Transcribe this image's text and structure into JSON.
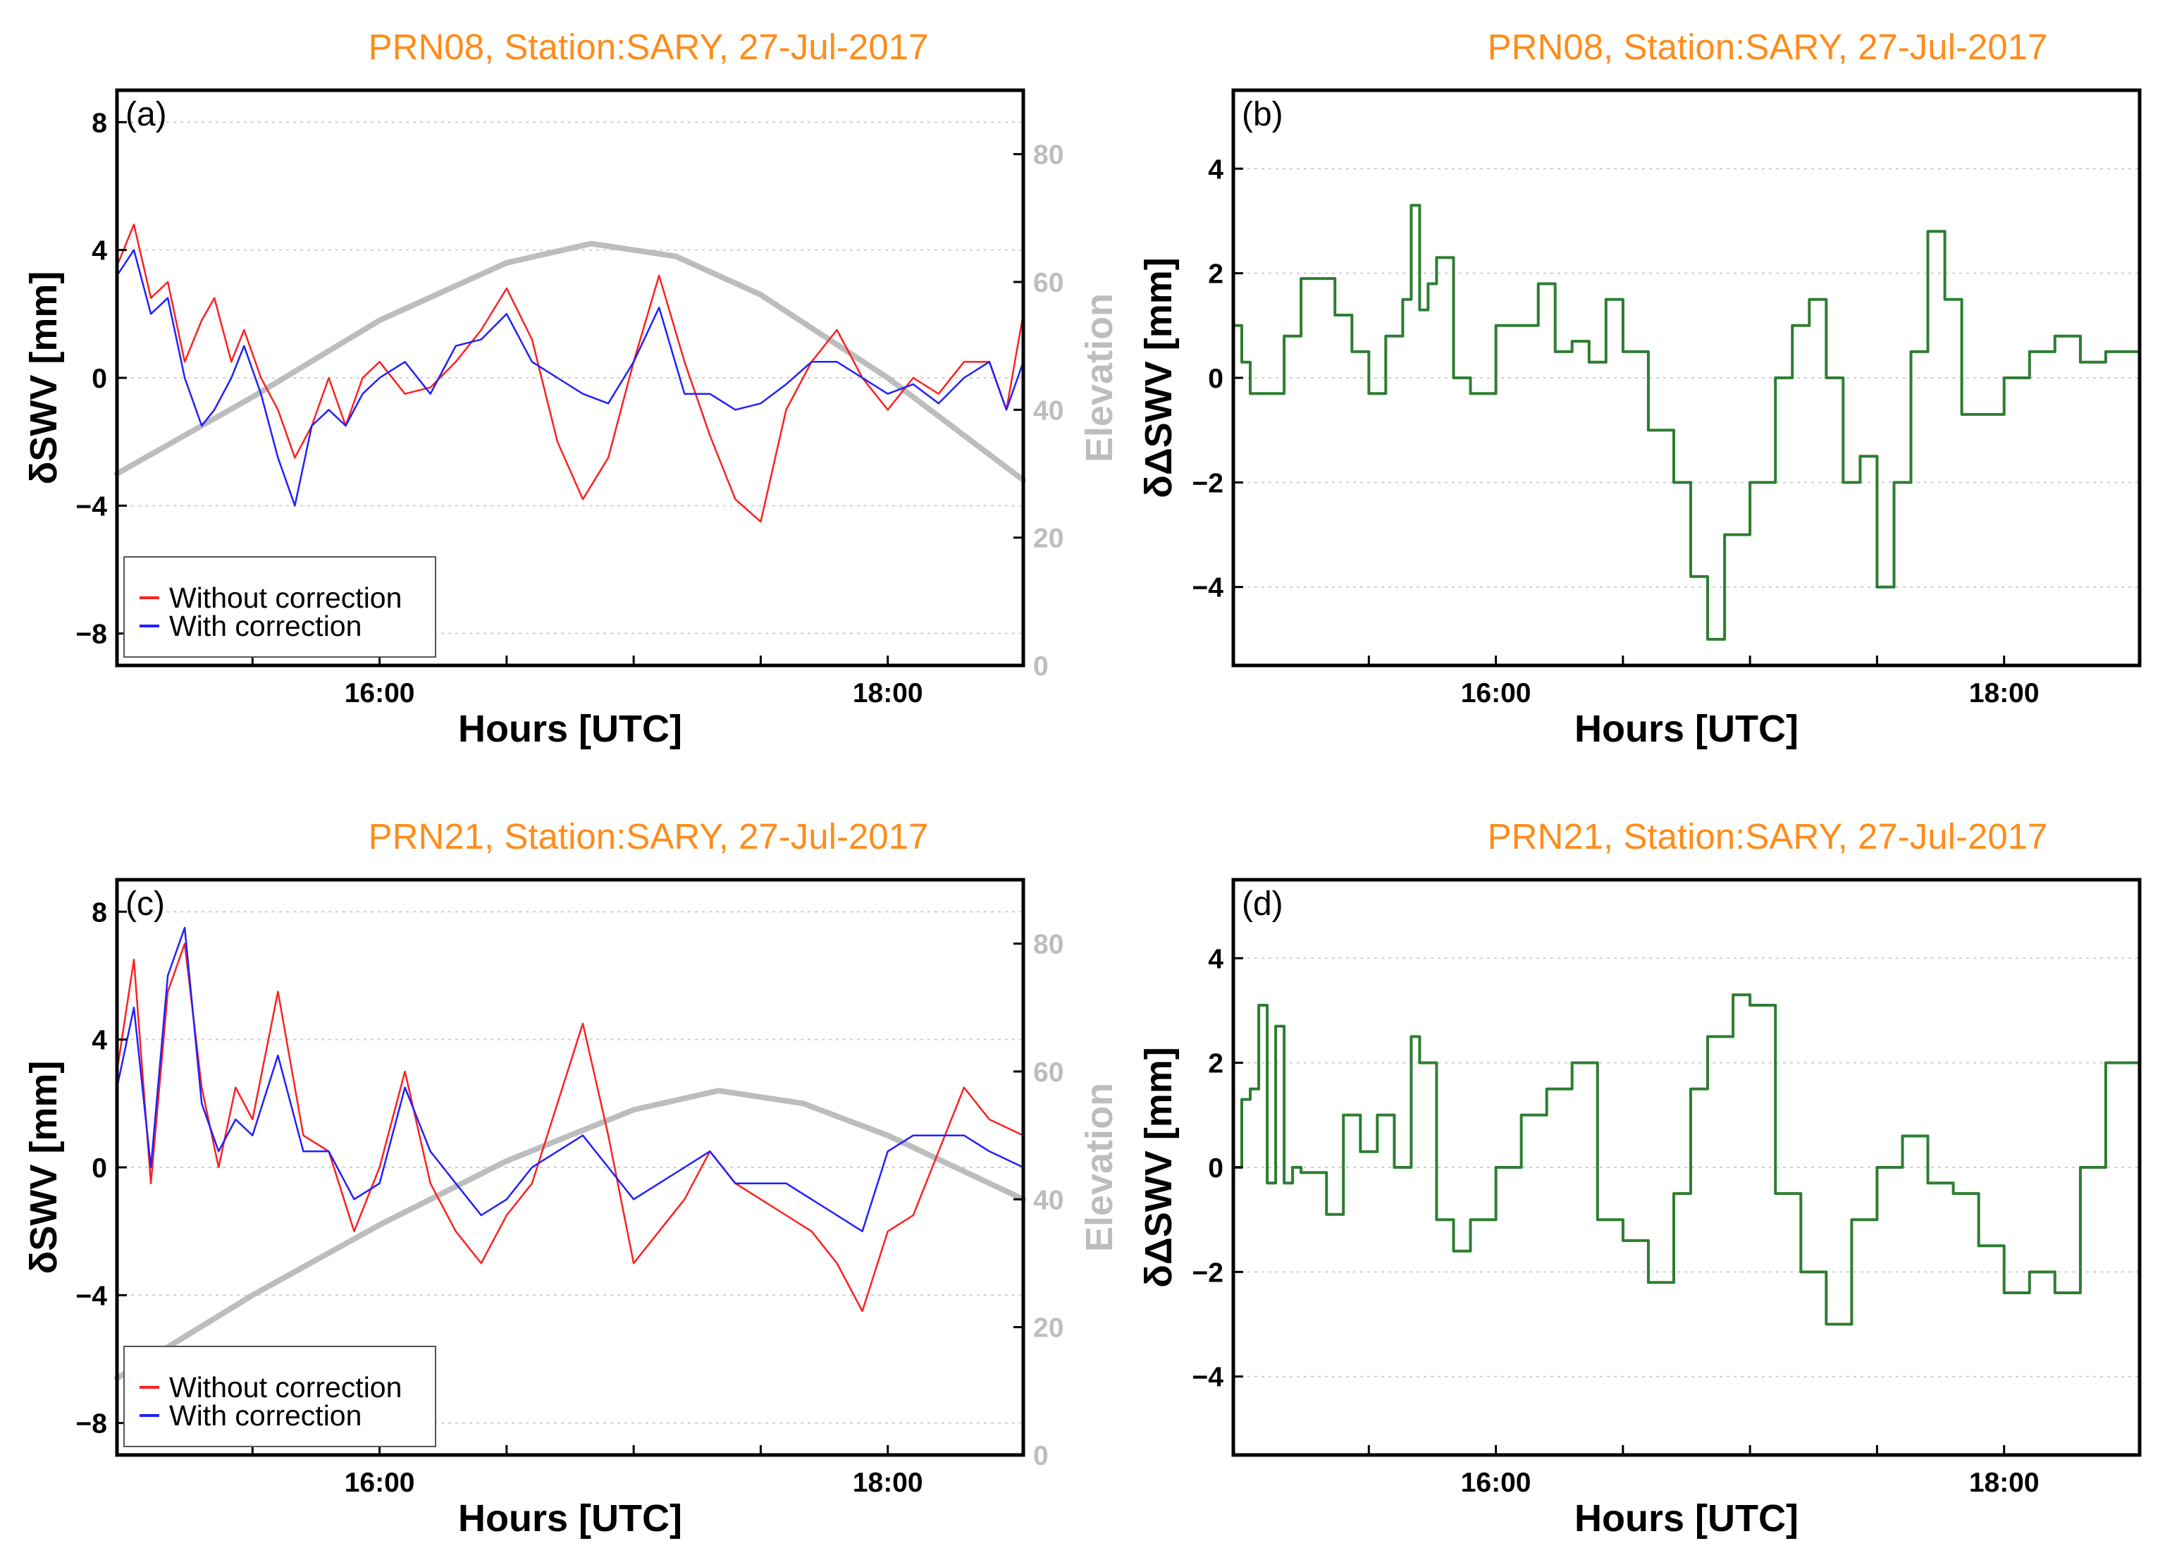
{
  "colors": {
    "title": "#ff8c1a",
    "without_correction": "#ff2020",
    "with_correction": "#2020ff",
    "elevation": "#bdbdbd",
    "difference": "#2e7d32",
    "axes": "#000000",
    "grid": "#d0d0d0"
  },
  "chart_data": [
    {
      "id": "a",
      "type": "line",
      "panel_label": "(a)",
      "title": "PRN08, Station:SARY, 27-Jul-2017",
      "xlabel": "Hours [UTC]",
      "ylabel": "δSWV [mm]",
      "y2label": "Elevation",
      "xlim": [
        "14:58",
        "18:32"
      ],
      "ylim": [
        -9,
        9
      ],
      "y2lim": [
        0,
        90
      ],
      "xticks": [
        "15:30",
        "16:00",
        "16:30",
        "17:00",
        "17:30",
        "18:00"
      ],
      "xtick_labels": [
        "16:00",
        "18:00"
      ],
      "yticks": [
        -8,
        -4,
        0,
        4,
        8
      ],
      "y2ticks": [
        0,
        20,
        40,
        60,
        80
      ],
      "grid": true,
      "legend_position": "bottom-left",
      "legend": [
        "Without correction",
        "With correction"
      ],
      "series": [
        {
          "name": "Without correction",
          "x": [
            "14:58",
            "15:02",
            "15:06",
            "15:10",
            "15:14",
            "15:18",
            "15:21",
            "15:25",
            "15:28",
            "15:32",
            "15:36",
            "15:40",
            "15:44",
            "15:48",
            "15:52",
            "15:56",
            "16:00",
            "16:06",
            "16:12",
            "16:18",
            "16:24",
            "16:30",
            "16:36",
            "16:42",
            "16:48",
            "16:54",
            "17:00",
            "17:06",
            "17:12",
            "17:18",
            "17:24",
            "17:30",
            "17:36",
            "17:42",
            "17:48",
            "17:54",
            "18:00",
            "18:06",
            "18:12",
            "18:18",
            "18:24",
            "18:28",
            "18:32"
          ],
          "y": [
            3.5,
            4.8,
            2.5,
            3.0,
            0.5,
            1.8,
            2.5,
            0.5,
            1.5,
            0.0,
            -1.0,
            -2.5,
            -1.5,
            0.0,
            -1.5,
            0.0,
            0.5,
            -0.5,
            -0.3,
            0.5,
            1.5,
            2.8,
            1.2,
            -2.0,
            -3.8,
            -2.5,
            0.5,
            3.2,
            0.5,
            -1.8,
            -3.8,
            -4.5,
            -1.0,
            0.5,
            1.5,
            0.0,
            -1.0,
            0.0,
            -0.5,
            0.5,
            0.5,
            -1.0,
            2.0
          ]
        },
        {
          "name": "With correction",
          "x": [
            "14:58",
            "15:02",
            "15:06",
            "15:10",
            "15:14",
            "15:18",
            "15:21",
            "15:25",
            "15:28",
            "15:32",
            "15:36",
            "15:40",
            "15:44",
            "15:48",
            "15:52",
            "15:56",
            "16:00",
            "16:06",
            "16:12",
            "16:18",
            "16:24",
            "16:30",
            "16:36",
            "16:42",
            "16:48",
            "16:54",
            "17:00",
            "17:06",
            "17:12",
            "17:18",
            "17:24",
            "17:30",
            "17:36",
            "17:42",
            "17:48",
            "17:54",
            "18:00",
            "18:06",
            "18:12",
            "18:18",
            "18:24",
            "18:28",
            "18:32"
          ],
          "y": [
            3.2,
            4.0,
            2.0,
            2.5,
            0.0,
            -1.5,
            -1.0,
            0.0,
            1.0,
            -0.5,
            -2.5,
            -4.0,
            -1.5,
            -1.0,
            -1.5,
            -0.5,
            0.0,
            0.5,
            -0.5,
            1.0,
            1.2,
            2.0,
            0.5,
            0.0,
            -0.5,
            -0.8,
            0.5,
            2.2,
            -0.5,
            -0.5,
            -1.0,
            -0.8,
            -0.2,
            0.5,
            0.5,
            0.0,
            -0.5,
            -0.2,
            -0.8,
            0.0,
            0.5,
            -1.0,
            0.5
          ]
        },
        {
          "name": "Elevation",
          "axis": "y2",
          "x": [
            "14:58",
            "15:30",
            "16:00",
            "16:30",
            "16:50",
            "17:10",
            "17:30",
            "18:00",
            "18:32"
          ],
          "y": [
            30,
            42,
            54,
            63,
            66,
            64,
            58,
            45,
            29
          ]
        }
      ]
    },
    {
      "id": "b",
      "type": "line",
      "panel_label": "(b)",
      "title": "PRN08, Station:SARY, 27-Jul-2017",
      "xlabel": "Hours [UTC]",
      "ylabel": "δΔSWV [mm]",
      "xlim": [
        "14:58",
        "18:32"
      ],
      "ylim": [
        -5.5,
        5.5
      ],
      "xticks": [
        "15:30",
        "16:00",
        "16:30",
        "17:00",
        "17:30",
        "18:00"
      ],
      "xtick_labels": [
        "16:00",
        "18:00"
      ],
      "yticks": [
        -4,
        -2,
        0,
        2,
        4
      ],
      "grid": true,
      "series": [
        {
          "name": "",
          "x": [
            "14:58",
            "15:00",
            "15:02",
            "15:06",
            "15:10",
            "15:14",
            "15:18",
            "15:22",
            "15:26",
            "15:30",
            "15:34",
            "15:38",
            "15:40",
            "15:42",
            "15:44",
            "15:46",
            "15:50",
            "15:54",
            "16:00",
            "16:06",
            "16:10",
            "16:14",
            "16:18",
            "16:22",
            "16:26",
            "16:30",
            "16:36",
            "16:42",
            "16:46",
            "16:50",
            "16:54",
            "17:00",
            "17:06",
            "17:10",
            "17:14",
            "17:18",
            "17:22",
            "17:26",
            "17:30",
            "17:34",
            "17:38",
            "17:42",
            "17:46",
            "17:50",
            "17:54",
            "18:00",
            "18:06",
            "18:12",
            "18:18",
            "18:24",
            "18:32"
          ],
          "y": [
            1.0,
            0.3,
            -0.3,
            -0.3,
            0.8,
            1.9,
            1.9,
            1.2,
            0.5,
            -0.3,
            0.8,
            1.5,
            3.3,
            1.3,
            1.8,
            2.3,
            0.0,
            -0.3,
            1.0,
            1.0,
            1.8,
            0.5,
            0.7,
            0.3,
            1.5,
            0.5,
            -1.0,
            -2.0,
            -3.8,
            -5.0,
            -3.0,
            -2.0,
            0.0,
            1.0,
            1.5,
            0.0,
            -2.0,
            -1.5,
            -4.0,
            -2.0,
            0.5,
            2.8,
            1.5,
            -0.7,
            -0.7,
            0.0,
            0.5,
            0.8,
            0.3,
            0.5,
            0.0
          ]
        }
      ]
    },
    {
      "id": "c",
      "type": "line",
      "panel_label": "(c)",
      "title": "PRN21, Station:SARY, 27-Jul-2017",
      "xlabel": "Hours [UTC]",
      "ylabel": "δSWV [mm]",
      "y2label": "Elevation",
      "xlim": [
        "14:58",
        "18:32"
      ],
      "ylim": [
        -9,
        9
      ],
      "y2lim": [
        0,
        90
      ],
      "xticks": [
        "15:30",
        "16:00",
        "16:30",
        "17:00",
        "17:30",
        "18:00"
      ],
      "xtick_labels": [
        "16:00",
        "18:00"
      ],
      "yticks": [
        -8,
        -4,
        0,
        4,
        8
      ],
      "y2ticks": [
        0,
        20,
        40,
        60,
        80
      ],
      "grid": true,
      "legend_position": "bottom-left",
      "legend": [
        "Without correction",
        "With correction"
      ],
      "series": [
        {
          "name": "Without correction",
          "x": [
            "14:58",
            "15:02",
            "15:06",
            "15:10",
            "15:14",
            "15:18",
            "15:22",
            "15:26",
            "15:30",
            "15:36",
            "15:42",
            "15:48",
            "15:54",
            "16:00",
            "16:06",
            "16:12",
            "16:18",
            "16:24",
            "16:30",
            "16:36",
            "16:42",
            "16:48",
            "16:54",
            "17:00",
            "17:06",
            "17:12",
            "17:18",
            "17:24",
            "17:30",
            "17:36",
            "17:42",
            "17:48",
            "17:54",
            "18:00",
            "18:06",
            "18:12",
            "18:18",
            "18:24",
            "18:32"
          ],
          "y": [
            3.0,
            6.5,
            -0.5,
            5.5,
            7.0,
            2.5,
            0.0,
            2.5,
            1.5,
            5.5,
            1.0,
            0.5,
            -2.0,
            0.0,
            3.0,
            -0.5,
            -2.0,
            -3.0,
            -1.5,
            -0.5,
            2.0,
            4.5,
            1.0,
            -3.0,
            -2.0,
            -1.0,
            0.5,
            -0.5,
            -1.0,
            -1.5,
            -2.0,
            -3.0,
            -4.5,
            -2.0,
            -1.5,
            0.5,
            2.5,
            1.5,
            1.0
          ]
        },
        {
          "name": "With correction",
          "x": [
            "14:58",
            "15:02",
            "15:06",
            "15:10",
            "15:14",
            "15:18",
            "15:22",
            "15:26",
            "15:30",
            "15:36",
            "15:42",
            "15:48",
            "15:54",
            "16:00",
            "16:06",
            "16:12",
            "16:18",
            "16:24",
            "16:30",
            "16:36",
            "16:42",
            "16:48",
            "16:54",
            "17:00",
            "17:06",
            "17:12",
            "17:18",
            "17:24",
            "17:30",
            "17:36",
            "17:42",
            "17:48",
            "17:54",
            "18:00",
            "18:06",
            "18:12",
            "18:18",
            "18:24",
            "18:32"
          ],
          "y": [
            2.5,
            5.0,
            0.0,
            6.0,
            7.5,
            2.0,
            0.5,
            1.5,
            1.0,
            3.5,
            0.5,
            0.5,
            -1.0,
            -0.5,
            2.5,
            0.5,
            -0.5,
            -1.5,
            -1.0,
            0.0,
            0.5,
            1.0,
            0.0,
            -1.0,
            -0.5,
            0.0,
            0.5,
            -0.5,
            -0.5,
            -0.5,
            -1.0,
            -1.5,
            -2.0,
            0.5,
            1.0,
            1.0,
            1.0,
            0.5,
            0.0
          ]
        },
        {
          "name": "Elevation",
          "axis": "y2",
          "x": [
            "14:58",
            "15:30",
            "16:00",
            "16:30",
            "17:00",
            "17:20",
            "17:40",
            "18:00",
            "18:32"
          ],
          "y": [
            12,
            25,
            36,
            46,
            54,
            57,
            55,
            50,
            40
          ]
        }
      ]
    },
    {
      "id": "d",
      "type": "line",
      "panel_label": "(d)",
      "title": "PRN21, Station:SARY, 27-Jul-2017",
      "xlabel": "Hours [UTC]",
      "ylabel": "δΔSWV [mm]",
      "xlim": [
        "14:58",
        "18:32"
      ],
      "ylim": [
        -5.5,
        5.5
      ],
      "xticks": [
        "15:30",
        "16:00",
        "16:30",
        "17:00",
        "17:30",
        "18:00"
      ],
      "xtick_labels": [
        "16:00",
        "18:00"
      ],
      "yticks": [
        -4,
        -2,
        0,
        2,
        4
      ],
      "grid": true,
      "series": [
        {
          "name": "",
          "x": [
            "14:58",
            "15:00",
            "15:02",
            "15:04",
            "15:06",
            "15:08",
            "15:10",
            "15:12",
            "15:14",
            "15:16",
            "15:20",
            "15:24",
            "15:28",
            "15:32",
            "15:36",
            "15:40",
            "15:42",
            "15:46",
            "15:50",
            "15:54",
            "16:00",
            "16:06",
            "16:12",
            "16:18",
            "16:24",
            "16:30",
            "16:36",
            "16:42",
            "16:46",
            "16:50",
            "16:56",
            "17:00",
            "17:06",
            "17:12",
            "17:18",
            "17:24",
            "17:30",
            "17:36",
            "17:42",
            "17:48",
            "17:54",
            "18:00",
            "18:06",
            "18:12",
            "18:18",
            "18:24",
            "18:32"
          ],
          "y": [
            0.0,
            1.3,
            1.5,
            3.1,
            -0.3,
            2.7,
            -0.3,
            0.0,
            -0.1,
            -0.1,
            -0.9,
            1.0,
            0.3,
            1.0,
            0.0,
            2.5,
            2.0,
            -1.0,
            -1.6,
            -1.0,
            0.0,
            1.0,
            1.5,
            2.0,
            -1.0,
            -1.4,
            -2.2,
            -0.5,
            1.5,
            2.5,
            3.3,
            3.1,
            -0.5,
            -2.0,
            -3.0,
            -1.0,
            0.0,
            0.6,
            -0.3,
            -0.5,
            -1.5,
            -2.4,
            -2.0,
            -2.4,
            0.0,
            2.0,
            1.9
          ]
        }
      ]
    }
  ]
}
